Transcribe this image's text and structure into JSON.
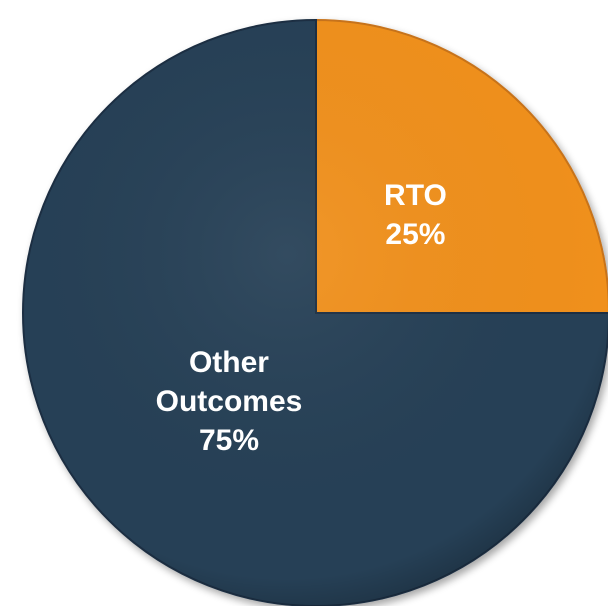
{
  "chart_data": {
    "type": "pie",
    "slices": [
      {
        "label": "RTO",
        "value": 25,
        "display": "25%",
        "color": "#F0901A"
      },
      {
        "label": "Other Outcomes",
        "value": 75,
        "display": "75%",
        "color": "#263F57"
      }
    ],
    "start": "12 o'clock",
    "direction": "clockwise",
    "legend": "none",
    "title": ""
  }
}
